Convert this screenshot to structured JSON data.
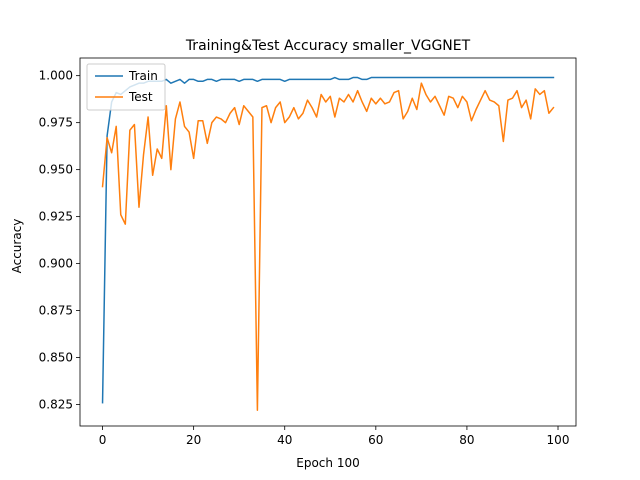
{
  "chart_data": {
    "type": "line",
    "title": "Training&Test Accuracy smaller_VGGNET",
    "xlabel": "Epoch 100",
    "ylabel": "Accuracy",
    "xlim": [
      -4.95,
      103.95
    ],
    "ylim": [
      0.8136,
      1.0094
    ],
    "xticks": [
      0,
      20,
      40,
      60,
      80,
      100
    ],
    "yticks": [
      0.825,
      0.85,
      0.875,
      0.9,
      0.925,
      0.95,
      0.975,
      1.0
    ],
    "ytick_labels": [
      "0.825",
      "0.850",
      "0.875",
      "0.900",
      "0.925",
      "0.950",
      "0.975",
      "1.000"
    ],
    "grid": false,
    "legend_position": "top-left",
    "x": [
      0,
      1,
      2,
      3,
      4,
      5,
      6,
      7,
      8,
      9,
      10,
      11,
      12,
      13,
      14,
      15,
      16,
      17,
      18,
      19,
      20,
      21,
      22,
      23,
      24,
      25,
      26,
      27,
      28,
      29,
      30,
      31,
      32,
      33,
      34,
      35,
      36,
      37,
      38,
      39,
      40,
      41,
      42,
      43,
      44,
      45,
      46,
      47,
      48,
      49,
      50,
      51,
      52,
      53,
      54,
      55,
      56,
      57,
      58,
      59,
      60,
      61,
      62,
      63,
      64,
      65,
      66,
      67,
      68,
      69,
      70,
      71,
      72,
      73,
      74,
      75,
      76,
      77,
      78,
      79,
      80,
      81,
      82,
      83,
      84,
      85,
      86,
      87,
      88,
      89,
      90,
      91,
      92,
      93,
      94,
      95,
      96,
      97,
      98,
      99
    ],
    "series": [
      {
        "name": "Train",
        "color": "#1f77b4",
        "values": [
          0.826,
          0.968,
          0.986,
          0.991,
          0.99,
          0.992,
          0.994,
          0.995,
          0.996,
          0.996,
          0.997,
          0.997,
          0.997,
          0.997,
          0.998,
          0.996,
          0.997,
          0.998,
          0.996,
          0.998,
          0.998,
          0.997,
          0.997,
          0.998,
          0.998,
          0.997,
          0.998,
          0.998,
          0.998,
          0.998,
          0.997,
          0.998,
          0.998,
          0.998,
          0.997,
          0.998,
          0.998,
          0.998,
          0.998,
          0.998,
          0.997,
          0.998,
          0.998,
          0.998,
          0.998,
          0.998,
          0.998,
          0.998,
          0.998,
          0.998,
          0.998,
          0.999,
          0.998,
          0.998,
          0.998,
          0.999,
          0.999,
          0.998,
          0.998,
          0.999,
          0.999,
          0.999,
          0.999,
          0.999,
          0.999,
          0.999,
          0.999,
          0.999,
          0.999,
          0.999,
          0.999,
          0.999,
          0.999,
          0.999,
          0.999,
          0.999,
          0.999,
          0.999,
          0.999,
          0.999,
          0.999,
          0.999,
          0.999,
          0.999,
          0.999,
          0.999,
          0.999,
          0.999,
          0.999,
          0.999,
          0.999,
          0.999,
          0.999,
          0.999,
          0.999,
          0.999,
          0.999,
          0.999,
          0.999,
          0.999
        ]
      },
      {
        "name": "Test",
        "color": "#ff7f0e",
        "values": [
          0.941,
          0.967,
          0.959,
          0.973,
          0.926,
          0.921,
          0.971,
          0.974,
          0.93,
          0.958,
          0.978,
          0.947,
          0.961,
          0.956,
          0.984,
          0.95,
          0.977,
          0.986,
          0.973,
          0.97,
          0.956,
          0.976,
          0.976,
          0.964,
          0.975,
          0.978,
          0.977,
          0.975,
          0.98,
          0.983,
          0.974,
          0.984,
          0.981,
          0.978,
          0.822,
          0.983,
          0.984,
          0.975,
          0.983,
          0.986,
          0.975,
          0.978,
          0.983,
          0.977,
          0.98,
          0.987,
          0.983,
          0.978,
          0.99,
          0.986,
          0.989,
          0.978,
          0.988,
          0.986,
          0.99,
          0.986,
          0.992,
          0.986,
          0.981,
          0.988,
          0.985,
          0.988,
          0.985,
          0.986,
          0.991,
          0.992,
          0.977,
          0.981,
          0.988,
          0.982,
          0.996,
          0.99,
          0.986,
          0.989,
          0.984,
          0.979,
          0.989,
          0.988,
          0.983,
          0.989,
          0.986,
          0.976,
          0.982,
          0.987,
          0.992,
          0.987,
          0.986,
          0.984,
          0.965,
          0.987,
          0.988,
          0.992,
          0.983,
          0.987,
          0.977,
          0.993,
          0.99,
          0.992,
          0.98,
          0.983
        ]
      }
    ]
  }
}
